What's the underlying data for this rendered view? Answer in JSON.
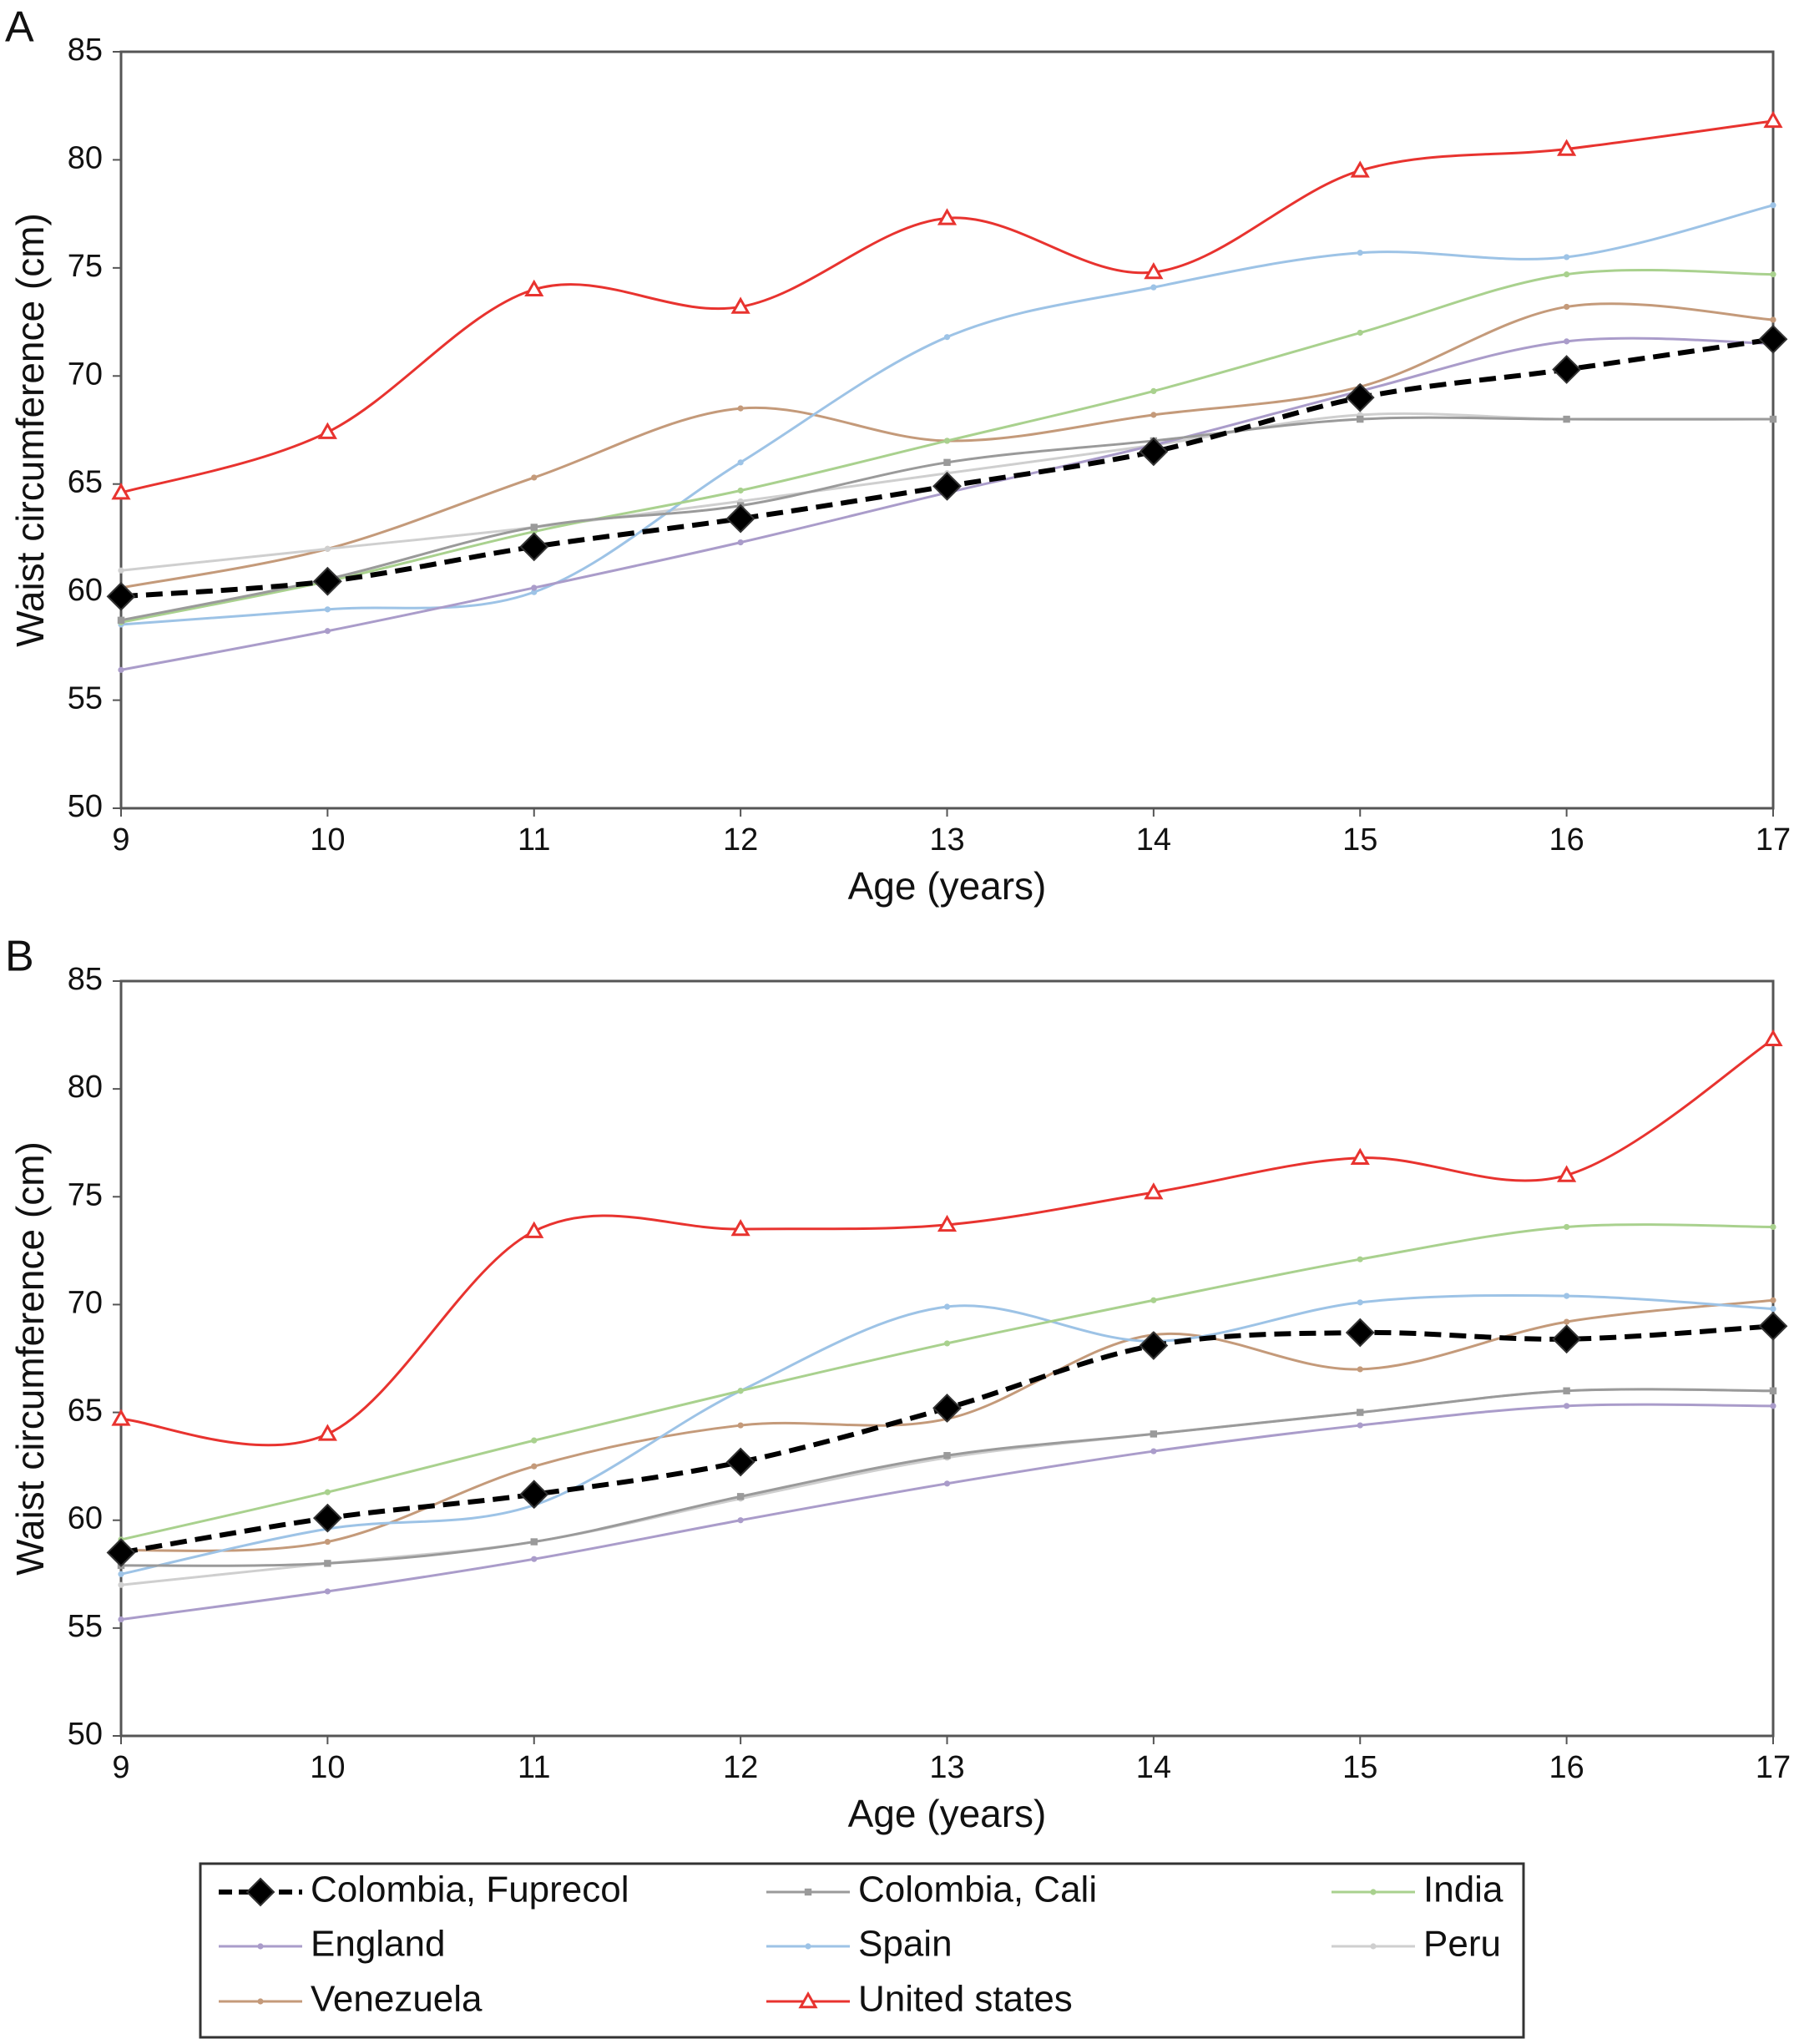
{
  "chart_data": [
    {
      "type": "line",
      "title": "A",
      "xlabel": "Age (years)",
      "ylabel": "Waist circumference (cm)",
      "x": [
        9,
        10,
        11,
        12,
        13,
        14,
        15,
        16,
        17
      ],
      "xlim": [
        9,
        17
      ],
      "xticks": [
        9,
        10,
        11,
        12,
        13,
        14,
        15,
        16,
        17
      ],
      "ylim": [
        50,
        85
      ],
      "yticks": [
        50,
        55,
        60,
        65,
        70,
        75,
        80,
        85
      ],
      "grid": false,
      "series": [
        {
          "name": "Colombia, Fuprecol",
          "color": "#000000",
          "marker": "diamond",
          "line_style": "dashed",
          "values": [
            59.8,
            60.5,
            62.1,
            63.4,
            64.9,
            66.5,
            69.0,
            70.3,
            71.7
          ]
        },
        {
          "name": "Colombia, Cali",
          "color": "#9a9a9a",
          "marker": "square",
          "line_style": "solid",
          "values": [
            58.7,
            60.6,
            63.0,
            64.0,
            66.0,
            67.0,
            68.0,
            68.0,
            68.0
          ]
        },
        {
          "name": "India",
          "color": "#a9d18e",
          "marker": "dot",
          "line_style": "solid",
          "values": [
            58.6,
            60.5,
            62.8,
            64.7,
            67.0,
            69.3,
            72.0,
            74.7,
            74.7
          ]
        },
        {
          "name": "England",
          "color": "#aa9cca",
          "marker": "dot",
          "line_style": "solid",
          "values": [
            56.4,
            58.2,
            60.2,
            62.3,
            64.6,
            66.8,
            69.3,
            71.6,
            71.5
          ]
        },
        {
          "name": "Spain",
          "color": "#9dc3e6",
          "marker": "dot",
          "line_style": "solid",
          "values": [
            58.5,
            59.2,
            60.0,
            66.0,
            71.8,
            74.1,
            75.7,
            75.5,
            77.9
          ]
        },
        {
          "name": "Peru",
          "color": "#cfcfcf",
          "marker": "dot",
          "line_style": "solid",
          "values": [
            61.0,
            62.0,
            63.0,
            64.2,
            65.5,
            66.8,
            68.2,
            68.0,
            68.0
          ]
        },
        {
          "name": "Venezuela",
          "color": "#c49a7a",
          "marker": "dot",
          "line_style": "solid",
          "values": [
            60.2,
            62.0,
            65.3,
            68.5,
            67.0,
            68.2,
            69.5,
            73.2,
            72.6
          ]
        },
        {
          "name": "United states",
          "color": "#e8332f",
          "marker": "triangle",
          "line_style": "solid",
          "values": [
            64.6,
            67.4,
            74.0,
            73.2,
            77.3,
            74.8,
            79.5,
            80.5,
            81.8
          ]
        }
      ]
    },
    {
      "type": "line",
      "title": "B",
      "xlabel": "Age (years)",
      "ylabel": "Waist circumference (cm)",
      "x": [
        9,
        10,
        11,
        12,
        13,
        14,
        15,
        16,
        17
      ],
      "xlim": [
        9,
        17
      ],
      "xticks": [
        9,
        10,
        11,
        12,
        13,
        14,
        15,
        16,
        17
      ],
      "ylim": [
        50,
        85
      ],
      "yticks": [
        50,
        55,
        60,
        65,
        70,
        75,
        80,
        85
      ],
      "grid": false,
      "series": [
        {
          "name": "Colombia, Fuprecol",
          "color": "#000000",
          "marker": "diamond",
          "line_style": "dashed",
          "values": [
            58.5,
            60.1,
            61.2,
            62.7,
            65.2,
            68.1,
            68.7,
            68.4,
            69.0
          ]
        },
        {
          "name": "Colombia, Cali",
          "color": "#9a9a9a",
          "marker": "square",
          "line_style": "solid",
          "values": [
            57.9,
            58.0,
            59.0,
            61.1,
            63.0,
            64.0,
            65.0,
            66.0,
            66.0
          ]
        },
        {
          "name": "India",
          "color": "#a9d18e",
          "marker": "dot",
          "line_style": "solid",
          "values": [
            59.1,
            61.3,
            63.7,
            66.0,
            68.2,
            70.2,
            72.1,
            73.6,
            73.6
          ]
        },
        {
          "name": "England",
          "color": "#aa9cca",
          "marker": "dot",
          "line_style": "solid",
          "values": [
            55.4,
            56.7,
            58.2,
            60.0,
            61.7,
            63.2,
            64.4,
            65.3,
            65.3
          ]
        },
        {
          "name": "Spain",
          "color": "#9dc3e6",
          "marker": "dot",
          "line_style": "solid",
          "values": [
            57.5,
            59.6,
            60.7,
            66.0,
            69.9,
            68.3,
            70.1,
            70.4,
            69.8
          ]
        },
        {
          "name": "Peru",
          "color": "#cfcfcf",
          "marker": "dot",
          "line_style": "solid",
          "values": [
            57.0,
            58.0,
            59.0,
            61.0,
            62.9,
            64.0,
            65.0,
            66.0,
            66.0
          ]
        },
        {
          "name": "Venezuela",
          "color": "#c49a7a",
          "marker": "dot",
          "line_style": "solid",
          "values": [
            58.6,
            59.0,
            62.5,
            64.4,
            64.7,
            68.6,
            67.0,
            69.2,
            70.2
          ]
        },
        {
          "name": "United states",
          "color": "#e8332f",
          "marker": "triangle",
          "line_style": "solid",
          "values": [
            64.7,
            64.0,
            73.4,
            73.5,
            73.7,
            75.2,
            76.8,
            76.0,
            82.3
          ]
        }
      ]
    }
  ]
}
